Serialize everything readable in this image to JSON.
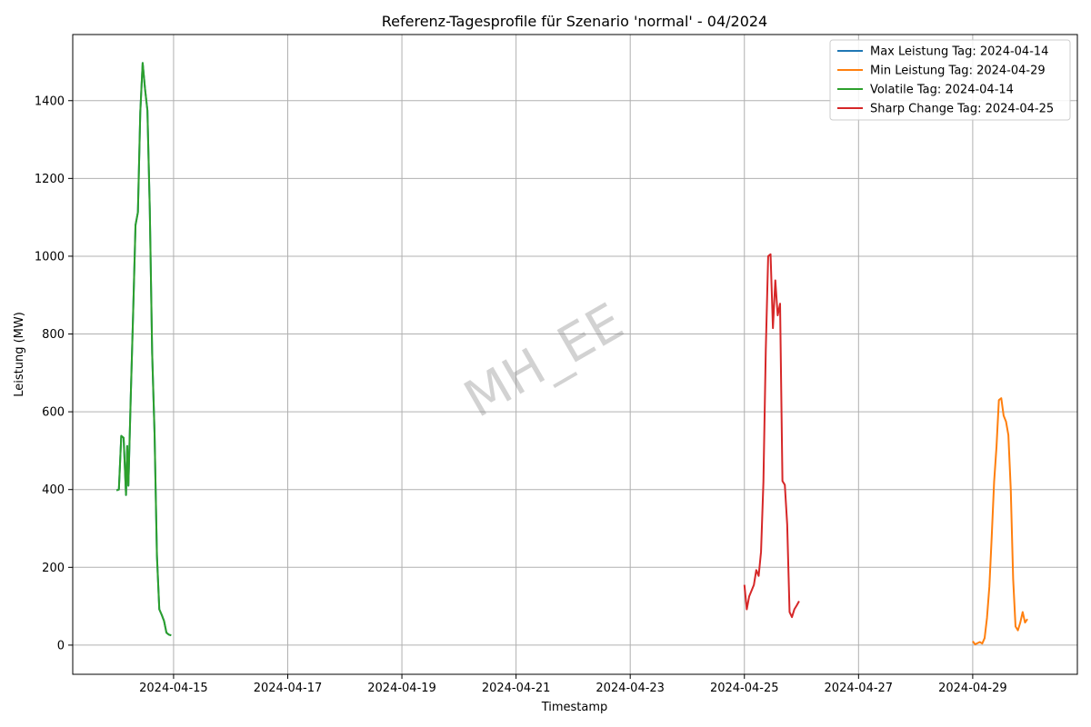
{
  "chart_data": {
    "type": "line",
    "title": "Referenz-Tagesprofile für Szenario 'normal' - 04/2024",
    "xlabel": "Timestamp",
    "ylabel": "Leistung (MW)",
    "watermark": "MH_EE",
    "xlim": [
      "2024-04-13T05:36",
      "2024-04-30T20:00"
    ],
    "ylim": [
      -75,
      1570
    ],
    "grid": true,
    "legend_position": "top-right",
    "x_ticks": [
      "2024-04-15",
      "2024-04-17",
      "2024-04-19",
      "2024-04-21",
      "2024-04-23",
      "2024-04-25",
      "2024-04-27",
      "2024-04-29"
    ],
    "y_ticks": [
      0,
      200,
      400,
      600,
      800,
      1000,
      1200,
      1400
    ],
    "series": [
      {
        "name": "Max Leistung Tag: 2024-04-14",
        "color": "#1f77b4",
        "points": [
          [
            "2024-04-14T00:00",
            398
          ],
          [
            "2024-04-14T01:00",
            400
          ],
          [
            "2024-04-14T02:00",
            538
          ],
          [
            "2024-04-14T03:00",
            533
          ],
          [
            "2024-04-14T04:00",
            386
          ],
          [
            "2024-04-14T04:30",
            512
          ],
          [
            "2024-04-14T05:00",
            410
          ],
          [
            "2024-04-14T06:00",
            640
          ],
          [
            "2024-04-14T07:00",
            855
          ],
          [
            "2024-04-14T08:00",
            1080
          ],
          [
            "2024-04-14T09:00",
            1113
          ],
          [
            "2024-04-14T10:00",
            1370
          ],
          [
            "2024-04-14T11:00",
            1497
          ],
          [
            "2024-04-14T12:00",
            1430
          ],
          [
            "2024-04-14T13:00",
            1375
          ],
          [
            "2024-04-14T14:00",
            1120
          ],
          [
            "2024-04-14T15:00",
            750
          ],
          [
            "2024-04-14T16:00",
            545
          ],
          [
            "2024-04-14T17:00",
            230
          ],
          [
            "2024-04-14T18:00",
            92
          ],
          [
            "2024-04-14T19:00",
            78
          ],
          [
            "2024-04-14T20:00",
            62
          ],
          [
            "2024-04-14T21:00",
            32
          ],
          [
            "2024-04-14T22:00",
            27
          ],
          [
            "2024-04-14T23:00",
            25
          ]
        ]
      },
      {
        "name": "Min Leistung Tag: 2024-04-29",
        "color": "#ff7f0e",
        "points": [
          [
            "2024-04-29T00:00",
            10
          ],
          [
            "2024-04-29T01:00",
            2
          ],
          [
            "2024-04-29T02:00",
            5
          ],
          [
            "2024-04-29T03:00",
            8
          ],
          [
            "2024-04-29T04:00",
            4
          ],
          [
            "2024-04-29T05:00",
            18
          ],
          [
            "2024-04-29T06:00",
            70
          ],
          [
            "2024-04-29T07:00",
            150
          ],
          [
            "2024-04-29T08:00",
            280
          ],
          [
            "2024-04-29T09:00",
            420
          ],
          [
            "2024-04-29T10:00",
            510
          ],
          [
            "2024-04-29T11:00",
            630
          ],
          [
            "2024-04-29T12:00",
            635
          ],
          [
            "2024-04-29T13:00",
            590
          ],
          [
            "2024-04-29T14:00",
            575
          ],
          [
            "2024-04-29T15:00",
            540
          ],
          [
            "2024-04-29T16:00",
            400
          ],
          [
            "2024-04-29T17:00",
            170
          ],
          [
            "2024-04-29T18:00",
            48
          ],
          [
            "2024-04-29T19:00",
            38
          ],
          [
            "2024-04-29T20:00",
            58
          ],
          [
            "2024-04-29T21:00",
            85
          ],
          [
            "2024-04-29T22:00",
            58
          ],
          [
            "2024-04-29T23:00",
            67
          ]
        ]
      },
      {
        "name": "Volatile Tag: 2024-04-14",
        "color": "#2ca02c",
        "points": [
          [
            "2024-04-14T00:00",
            398
          ],
          [
            "2024-04-14T01:00",
            400
          ],
          [
            "2024-04-14T02:00",
            538
          ],
          [
            "2024-04-14T03:00",
            533
          ],
          [
            "2024-04-14T04:00",
            386
          ],
          [
            "2024-04-14T04:30",
            512
          ],
          [
            "2024-04-14T05:00",
            410
          ],
          [
            "2024-04-14T06:00",
            640
          ],
          [
            "2024-04-14T07:00",
            855
          ],
          [
            "2024-04-14T08:00",
            1080
          ],
          [
            "2024-04-14T09:00",
            1113
          ],
          [
            "2024-04-14T10:00",
            1370
          ],
          [
            "2024-04-14T11:00",
            1497
          ],
          [
            "2024-04-14T12:00",
            1430
          ],
          [
            "2024-04-14T13:00",
            1375
          ],
          [
            "2024-04-14T14:00",
            1120
          ],
          [
            "2024-04-14T15:00",
            750
          ],
          [
            "2024-04-14T16:00",
            545
          ],
          [
            "2024-04-14T17:00",
            230
          ],
          [
            "2024-04-14T18:00",
            92
          ],
          [
            "2024-04-14T19:00",
            78
          ],
          [
            "2024-04-14T20:00",
            62
          ],
          [
            "2024-04-14T21:00",
            32
          ],
          [
            "2024-04-14T22:00",
            27
          ],
          [
            "2024-04-14T23:00",
            25
          ]
        ]
      },
      {
        "name": "Sharp Change Tag: 2024-04-25",
        "color": "#d62728",
        "points": [
          [
            "2024-04-25T00:00",
            155
          ],
          [
            "2024-04-25T01:00",
            92
          ],
          [
            "2024-04-25T02:00",
            125
          ],
          [
            "2024-04-25T03:00",
            140
          ],
          [
            "2024-04-25T04:00",
            155
          ],
          [
            "2024-04-25T05:00",
            193
          ],
          [
            "2024-04-25T06:00",
            178
          ],
          [
            "2024-04-25T07:00",
            240
          ],
          [
            "2024-04-25T08:00",
            420
          ],
          [
            "2024-04-25T09:00",
            760
          ],
          [
            "2024-04-25T10:00",
            1000
          ],
          [
            "2024-04-25T11:00",
            1005
          ],
          [
            "2024-04-25T12:00",
            815
          ],
          [
            "2024-04-25T13:00",
            938
          ],
          [
            "2024-04-25T14:00",
            848
          ],
          [
            "2024-04-25T15:00",
            878
          ],
          [
            "2024-04-25T16:00",
            422
          ],
          [
            "2024-04-25T17:00",
            412
          ],
          [
            "2024-04-25T18:00",
            310
          ],
          [
            "2024-04-25T19:00",
            85
          ],
          [
            "2024-04-25T20:00",
            72
          ],
          [
            "2024-04-25T21:00",
            92
          ],
          [
            "2024-04-25T22:00",
            102
          ],
          [
            "2024-04-25T23:00",
            113
          ]
        ]
      }
    ]
  }
}
